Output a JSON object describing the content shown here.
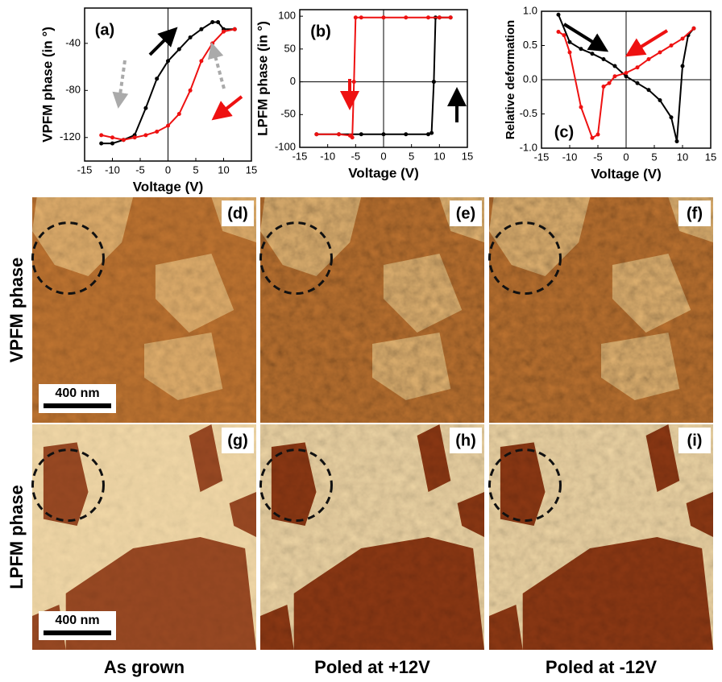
{
  "chart_data": [
    {
      "type": "line",
      "panel_label": "(a)",
      "xlabel": "Voltage (V)",
      "ylabel": "VPFM phase (in °)",
      "xlim": [
        -15,
        15
      ],
      "xticks": [
        -15,
        -10,
        -5,
        0,
        5,
        10,
        15
      ],
      "ylim": [
        -140,
        -10
      ],
      "yticks": [
        -120,
        -80,
        -40
      ],
      "zero_lines": true,
      "series": [
        {
          "color": "#000000",
          "x": [
            -12,
            -10,
            -8,
            -6,
            -4,
            -2,
            0,
            2,
            4,
            6,
            8,
            9,
            10,
            12
          ],
          "values": [
            -125,
            -125,
            -122,
            -118,
            -95,
            -70,
            -55,
            -45,
            -35,
            -28,
            -22,
            -22,
            -28,
            -28
          ]
        },
        {
          "color": "#ee1111",
          "x": [
            12,
            10,
            8,
            6,
            4,
            2,
            0,
            -2,
            -4,
            -6,
            -8,
            -10,
            -12
          ],
          "values": [
            -28,
            -30,
            -40,
            -55,
            -80,
            -100,
            -110,
            -115,
            -118,
            -120,
            -122,
            -120,
            -118
          ]
        }
      ]
    },
    {
      "type": "line",
      "panel_label": "(b)",
      "xlabel": "Voltage (V)",
      "ylabel": "LPFM phase (in °)",
      "xlim": [
        -15,
        15
      ],
      "xticks": [
        -15,
        -10,
        -5,
        0,
        5,
        10,
        15
      ],
      "ylim": [
        -100,
        110
      ],
      "yticks": [
        -100,
        -50,
        0,
        50,
        100
      ],
      "zero_lines": true,
      "series": [
        {
          "color": "#000000",
          "x": [
            -12,
            -8,
            -4,
            0,
            4,
            8,
            8.6,
            9,
            9.3,
            10,
            12
          ],
          "values": [
            -80,
            -80,
            -80,
            -80,
            -80,
            -80,
            -78,
            0,
            98,
            98,
            98
          ]
        },
        {
          "color": "#ee1111",
          "x": [
            12,
            10,
            8,
            4,
            0,
            -4,
            -5,
            -5.3,
            -5.6,
            -6,
            -8,
            -12
          ],
          "values": [
            98,
            98,
            98,
            98,
            98,
            98,
            98,
            0,
            -85,
            -82,
            -80,
            -80
          ]
        }
      ]
    },
    {
      "type": "line",
      "panel_label": "(c)",
      "xlabel": "Voltage (V)",
      "ylabel": "Relative deformation",
      "xlim": [
        -15,
        15
      ],
      "xticks": [
        -15,
        -10,
        -5,
        0,
        5,
        10,
        15
      ],
      "ylim": [
        -1,
        1
      ],
      "yticks": [
        {
          "value": -1,
          "label": "-1.0"
        },
        -0.5,
        {
          "value": 0,
          "label": "0.0"
        },
        0.5,
        {
          "value": 1,
          "label": "1.0"
        }
      ],
      "zero_lines": true,
      "series": [
        {
          "color": "#000000",
          "x": [
            -12,
            -10,
            -8,
            -6,
            -4,
            -2,
            0,
            2,
            4,
            6,
            8,
            9,
            10,
            11,
            12
          ],
          "values": [
            0.95,
            0.55,
            0.45,
            0.38,
            0.3,
            0.2,
            0.05,
            -0.05,
            -0.15,
            -0.3,
            -0.55,
            -0.9,
            0.2,
            0.65,
            0.75
          ]
        },
        {
          "color": "#ee1111",
          "x": [
            12,
            10,
            8,
            6,
            4,
            2,
            0,
            -2,
            -3,
            -4,
            -5,
            -6,
            -8,
            -10,
            -11,
            -12
          ],
          "values": [
            0.75,
            0.6,
            0.5,
            0.4,
            0.3,
            0.18,
            0.1,
            0.05,
            -0.05,
            -0.1,
            -0.8,
            -0.85,
            -0.4,
            0.4,
            0.65,
            0.7
          ]
        }
      ]
    }
  ],
  "images": {
    "row_labels": [
      "VPFM phase",
      "LPFM phase"
    ],
    "column_labels": [
      "As grown",
      "Poled at +12V",
      "Poled at -12V"
    ],
    "panels": [
      {
        "label": "(d)",
        "scale_bar": "400 nm"
      },
      {
        "label": "(e)"
      },
      {
        "label": "(f)"
      },
      {
        "label": "(g)",
        "scale_bar": "400 nm"
      },
      {
        "label": "(h)"
      },
      {
        "label": "(i)"
      }
    ]
  }
}
